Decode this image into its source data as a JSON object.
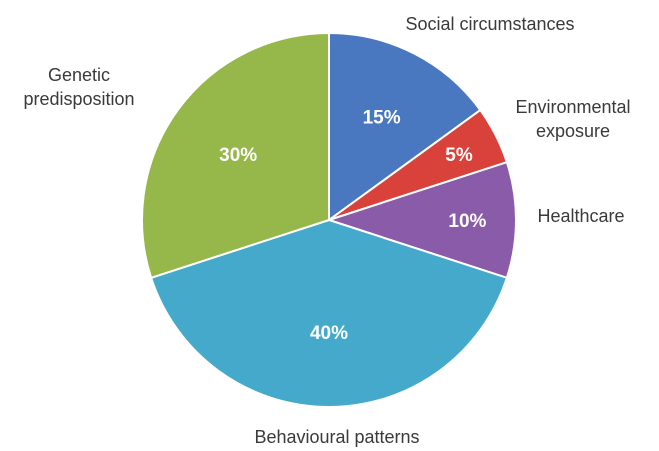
{
  "chart_data": {
    "type": "pie",
    "title": "",
    "start": "12 o'clock, clockwise",
    "slices": [
      {
        "name": "Social circumstances",
        "value": 15,
        "value_label": "15%",
        "label_lines": [
          "Social circumstances"
        ],
        "color": "#4a78c0"
      },
      {
        "name": "Environmental exposure",
        "value": 5,
        "value_label": "5%",
        "label_lines": [
          "Environmental",
          "exposure"
        ],
        "color": "#d9423a"
      },
      {
        "name": "Healthcare",
        "value": 10,
        "value_label": "10%",
        "label_lines": [
          "Healthcare"
        ],
        "color": "#8a5ba8"
      },
      {
        "name": "Behavioural patterns",
        "value": 40,
        "value_label": "40%",
        "label_lines": [
          "Behavioural patterns"
        ],
        "color": "#45a9cc"
      },
      {
        "name": "Genetic predisposition",
        "value": 30,
        "value_label": "30%",
        "label_lines": [
          "Genetic",
          "predisposition"
        ],
        "color": "#96b84a"
      }
    ]
  }
}
